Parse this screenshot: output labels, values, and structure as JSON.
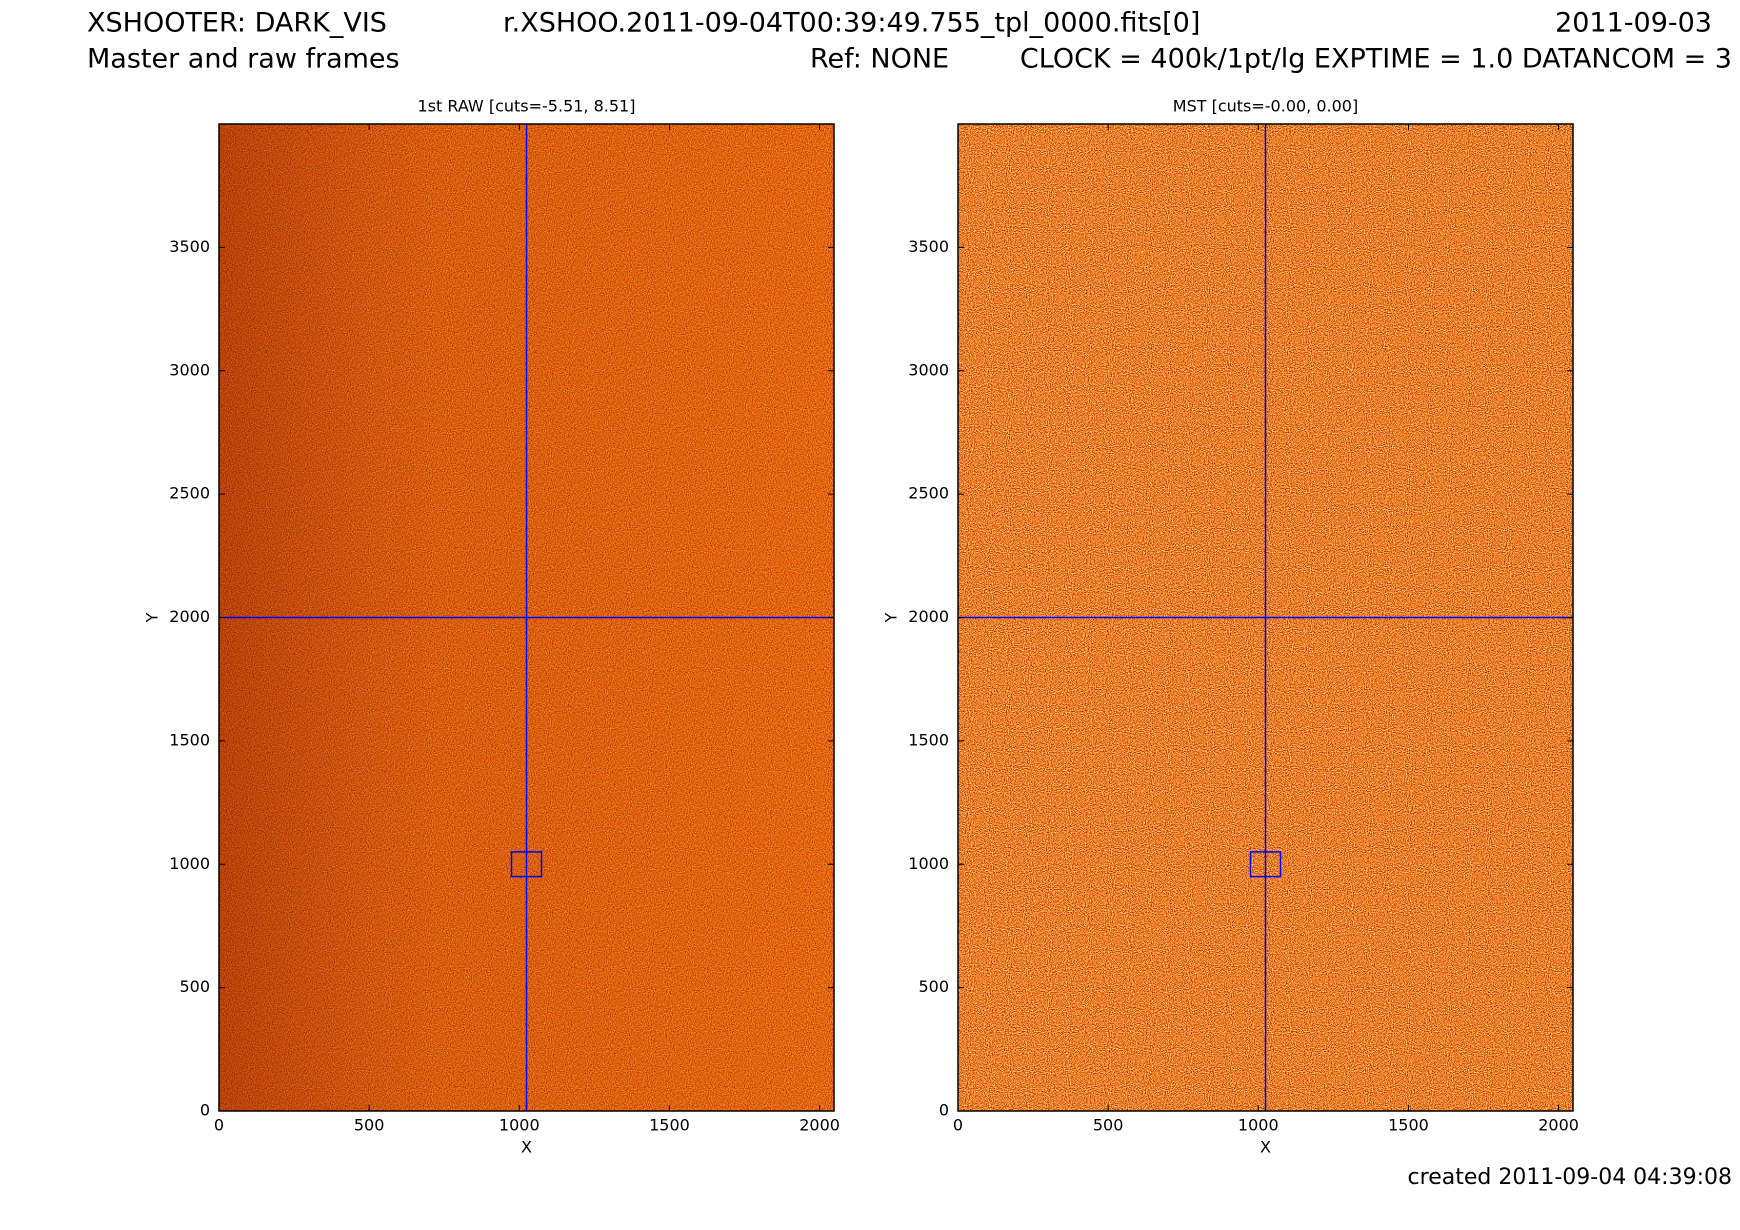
{
  "header": {
    "title": "XSHOOTER: DARK_VIS",
    "file": "r.XSHOO.2011-09-04T00:39:49.755_tpl_0000.fits[0]",
    "date": "2011-09-03",
    "subtitle": "Master and raw frames",
    "ref": "Ref: NONE",
    "params": "CLOCK = 400k/1pt/lg EXPTIME = 1.0 DATANCOM = 3"
  },
  "footer": "created 2011-09-04 04:39:08",
  "chart_data": [
    {
      "type": "image",
      "title": "1st RAW [cuts=-5.51, 8.51]",
      "xlabel": "X",
      "ylabel": "Y",
      "colormap": "hot",
      "xlim": [
        0,
        2048
      ],
      "ylim": [
        0,
        4000
      ],
      "xticks": [
        0,
        500,
        1000,
        1500,
        2000
      ],
      "yticks": [
        0,
        500,
        1000,
        1500,
        2000,
        2500,
        3000,
        3500
      ],
      "crosshair": {
        "x": 1024,
        "y": 2000,
        "color": "#0000ff"
      },
      "box": {
        "x": [
          974,
          1074
        ],
        "y": [
          950,
          1050
        ]
      }
    },
    {
      "type": "image",
      "title": "MST [cuts=-0.00, 0.00]",
      "xlabel": "X",
      "ylabel": "Y",
      "colormap": "hot",
      "xlim": [
        0,
        2048
      ],
      "ylim": [
        0,
        4000
      ],
      "xticks": [
        0,
        500,
        1000,
        1500,
        2000
      ],
      "yticks": [
        0,
        500,
        1000,
        1500,
        2000,
        2500,
        3000,
        3500
      ],
      "crosshair": {
        "x": 1024,
        "y": 2000,
        "color": "#0000ff"
      },
      "box": {
        "x": [
          974,
          1074
        ],
        "y": [
          950,
          1050
        ]
      }
    }
  ]
}
